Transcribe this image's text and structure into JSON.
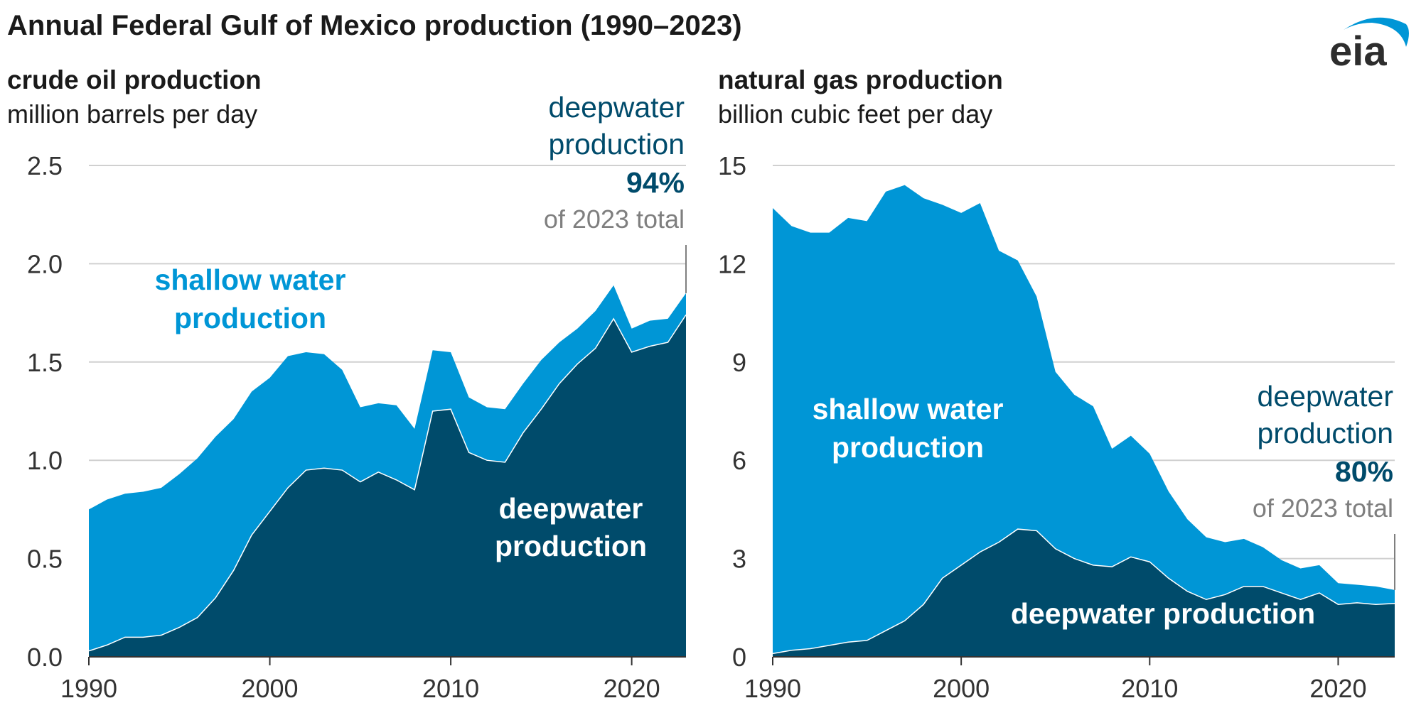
{
  "title": "Annual Federal Gulf of Mexico production (1990–2023)",
  "logo_text": "eia",
  "colors": {
    "shallow": "#0096d6",
    "deep": "#004b6b",
    "grid": "#d0d0d0",
    "note": "#7f7f7f"
  },
  "chart_data": [
    {
      "type": "area",
      "stacked": true,
      "title": "crude oil production",
      "ylabel": "million barrels per day",
      "xlim": [
        1990,
        2023
      ],
      "ylim": [
        0,
        2.5
      ],
      "xticks": [
        "1990",
        "2000",
        "2010",
        "2020"
      ],
      "yticks": [
        "0.0",
        "0.5",
        "1.0",
        "1.5",
        "2.0",
        "2.5"
      ],
      "x": [
        1990,
        1991,
        1992,
        1993,
        1994,
        1995,
        1996,
        1997,
        1998,
        1999,
        2000,
        2001,
        2002,
        2003,
        2004,
        2005,
        2006,
        2007,
        2008,
        2009,
        2010,
        2011,
        2012,
        2013,
        2014,
        2015,
        2016,
        2017,
        2018,
        2019,
        2020,
        2021,
        2022,
        2023
      ],
      "series": [
        {
          "name": "deepwater production",
          "values": [
            0.03,
            0.06,
            0.1,
            0.1,
            0.11,
            0.15,
            0.2,
            0.3,
            0.44,
            0.62,
            0.74,
            0.86,
            0.95,
            0.96,
            0.95,
            0.89,
            0.94,
            0.9,
            0.85,
            1.25,
            1.26,
            1.04,
            1.0,
            0.99,
            1.14,
            1.26,
            1.39,
            1.49,
            1.57,
            1.72,
            1.55,
            1.58,
            1.6,
            1.74
          ]
        },
        {
          "name": "shallow water production",
          "values": [
            0.72,
            0.74,
            0.73,
            0.74,
            0.75,
            0.78,
            0.81,
            0.82,
            0.77,
            0.73,
            0.68,
            0.67,
            0.6,
            0.58,
            0.51,
            0.38,
            0.35,
            0.38,
            0.31,
            0.31,
            0.29,
            0.28,
            0.27,
            0.27,
            0.25,
            0.25,
            0.21,
            0.18,
            0.19,
            0.17,
            0.12,
            0.13,
            0.12,
            0.11
          ]
        }
      ],
      "labels": {
        "shallow": [
          "shallow water",
          "production"
        ],
        "deep": [
          "deepwater",
          "production"
        ],
        "note_head": [
          "deepwater",
          "production"
        ],
        "note_pct": "94%",
        "note_tail": "of 2023 total"
      }
    },
    {
      "type": "area",
      "stacked": true,
      "title": "natural gas production",
      "ylabel": "billion cubic feet per day",
      "xlim": [
        1990,
        2023
      ],
      "ylim": [
        0,
        15
      ],
      "xticks": [
        "1990",
        "2000",
        "2010",
        "2020"
      ],
      "yticks": [
        "0",
        "3",
        "6",
        "9",
        "12",
        "15"
      ],
      "x": [
        1990,
        1991,
        1992,
        1993,
        1994,
        1995,
        1996,
        1997,
        1998,
        1999,
        2000,
        2001,
        2002,
        2003,
        2004,
        2005,
        2006,
        2007,
        2008,
        2009,
        2010,
        2011,
        2012,
        2013,
        2014,
        2015,
        2016,
        2017,
        2018,
        2019,
        2020,
        2021,
        2022,
        2023
      ],
      "series": [
        {
          "name": "deepwater production",
          "values": [
            0.1,
            0.2,
            0.25,
            0.35,
            0.45,
            0.5,
            0.8,
            1.1,
            1.6,
            2.4,
            2.8,
            3.2,
            3.5,
            3.9,
            3.85,
            3.3,
            3.0,
            2.8,
            2.75,
            3.05,
            2.9,
            2.4,
            2.0,
            1.75,
            1.9,
            2.15,
            2.15,
            1.95,
            1.75,
            1.95,
            1.6,
            1.65,
            1.6,
            1.63
          ]
        },
        {
          "name": "shallow water production",
          "values": [
            13.6,
            12.95,
            12.7,
            12.6,
            12.95,
            12.8,
            13.4,
            13.3,
            12.4,
            11.4,
            10.75,
            10.65,
            8.9,
            8.2,
            7.15,
            5.4,
            5.0,
            4.85,
            3.6,
            3.7,
            3.3,
            2.65,
            2.2,
            1.9,
            1.6,
            1.45,
            1.2,
            1.0,
            0.95,
            0.85,
            0.65,
            0.55,
            0.55,
            0.41
          ]
        }
      ],
      "labels": {
        "shallow": [
          "shallow water",
          "production"
        ],
        "deep": [
          "deepwater production"
        ],
        "note_head": [
          "deepwater",
          "production"
        ],
        "note_pct": "80%",
        "note_tail": "of 2023 total"
      }
    }
  ]
}
